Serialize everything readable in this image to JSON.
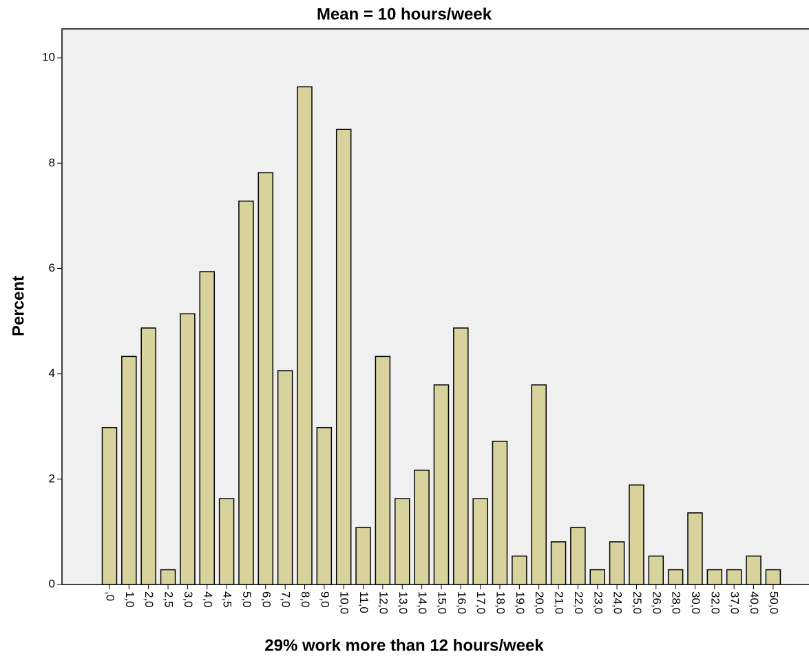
{
  "chart_data": {
    "type": "bar",
    "title": "Mean = 10 hours/week",
    "x_label": "29% work more than 12 hours/week",
    "y_label": "Percent",
    "categories": [
      ",0",
      "1,0",
      "2,0",
      "2,5",
      "3,0",
      "4,0",
      "4,5",
      "5,0",
      "6,0",
      "7,0",
      "8,0",
      "9,0",
      "10,0",
      "11,0",
      "12,0",
      "13,0",
      "14,0",
      "15,0",
      "16,0",
      "17,0",
      "18,0",
      "19,0",
      "20,0",
      "21,0",
      "22,0",
      "23,0",
      "24,0",
      "25,0",
      "26,0",
      "28,0",
      "30,0",
      "32,0",
      "37,0",
      "40,0",
      "50,0"
    ],
    "values": [
      2.98,
      4.33,
      4.87,
      0.28,
      5.14,
      5.94,
      1.63,
      7.28,
      7.82,
      4.06,
      9.45,
      2.98,
      8.64,
      1.08,
      4.33,
      1.63,
      2.17,
      3.79,
      4.87,
      1.63,
      2.72,
      0.54,
      3.79,
      0.81,
      1.08,
      0.28,
      0.81,
      1.89,
      0.54,
      0.28,
      1.36,
      0.28,
      0.28,
      0.54,
      0.28
    ],
    "color": "#d8d29c",
    "ylim": [
      0,
      10.55
    ],
    "yticks": [
      0,
      2,
      4,
      6,
      8,
      10
    ],
    "grid": false
  }
}
